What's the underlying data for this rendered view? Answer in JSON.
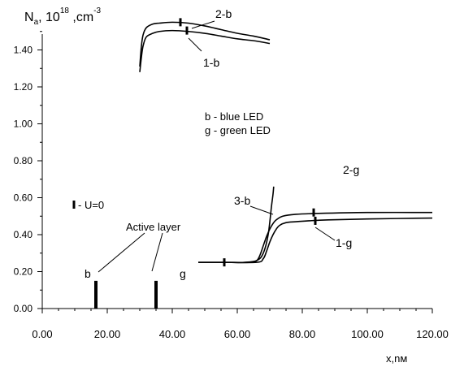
{
  "chart_data": {
    "type": "line",
    "title": "",
    "ylabel": {
      "main": "N",
      "sub": "a",
      "mid": ", 10",
      "sup1": "18",
      "unit": " ,cm",
      "sup2": "-3"
    },
    "xlabel": "x,nм",
    "xlim": [
      0,
      120
    ],
    "ylim": [
      0,
      1.6
    ],
    "x_ticks": [
      "0.00",
      "20.00",
      "40.00",
      "60.00",
      "80.00",
      "100.00",
      "120.00"
    ],
    "x_tick_values": [
      0,
      20,
      40,
      60,
      80,
      100,
      120
    ],
    "y_ticks": [
      "0.00",
      "0.20",
      "0.40",
      "0.60",
      "0.80",
      "1.00",
      "1.20",
      "1.40"
    ],
    "y_tick_values": [
      0,
      0.2,
      0.4,
      0.6,
      0.8,
      1.0,
      1.2,
      1.4
    ],
    "series": [
      {
        "name": "1-b",
        "x": [
          30,
          30.5,
          31,
          32,
          34,
          36,
          40,
          45,
          50,
          55,
          60,
          65,
          70
        ],
        "y": [
          1.28,
          1.36,
          1.42,
          1.47,
          1.49,
          1.5,
          1.505,
          1.5,
          1.49,
          1.475,
          1.46,
          1.45,
          1.435
        ]
      },
      {
        "name": "2-b",
        "x": [
          30,
          30.5,
          31,
          32,
          34,
          36,
          40,
          45,
          50,
          55,
          60,
          65,
          70
        ],
        "y": [
          1.31,
          1.42,
          1.48,
          1.52,
          1.54,
          1.545,
          1.55,
          1.545,
          1.53,
          1.51,
          1.49,
          1.475,
          1.455
        ]
      },
      {
        "name": "3-b",
        "x": [
          48,
          56,
          62,
          66,
          68,
          69.5,
          70.5,
          71,
          71.2
        ],
        "y": [
          0.25,
          0.25,
          0.25,
          0.26,
          0.3,
          0.4,
          0.55,
          0.62,
          0.66
        ]
      },
      {
        "name": "2-g",
        "x": [
          48,
          56,
          64,
          66,
          67,
          68,
          69,
          70,
          71,
          72,
          74,
          78,
          85,
          100,
          120
        ],
        "y": [
          0.25,
          0.25,
          0.25,
          0.26,
          0.29,
          0.34,
          0.39,
          0.43,
          0.46,
          0.48,
          0.5,
          0.51,
          0.515,
          0.52,
          0.52
        ]
      },
      {
        "name": "1-g",
        "x": [
          48,
          56,
          66,
          68,
          69,
          70,
          71,
          72,
          73,
          75,
          78,
          82,
          88,
          100,
          120
        ],
        "y": [
          0.25,
          0.25,
          0.25,
          0.27,
          0.31,
          0.36,
          0.4,
          0.43,
          0.45,
          0.465,
          0.47,
          0.475,
          0.48,
          0.485,
          0.49
        ]
      }
    ],
    "u0_markers": [
      {
        "x": 42.5,
        "y": 1.55
      },
      {
        "x": 44.5,
        "y": 1.505
      },
      {
        "x": 83.5,
        "y": 0.52
      },
      {
        "x": 84,
        "y": 0.475
      },
      {
        "x": 56,
        "y": 0.25
      }
    ],
    "active_layers": [
      {
        "x": 16.5,
        "y": 0.15
      },
      {
        "x": 35,
        "y": 0.15
      }
    ],
    "labels": {
      "l2b": "2-b",
      "l1b": "1-b",
      "l3b": "3-b",
      "l2g": "2-g",
      "l1g": "1-g",
      "legend_b": "b - blue LED",
      "legend_g": "g - green LED",
      "u0_legend": "- U=0",
      "active_layer": "Active layer",
      "b": "b",
      "g": "g"
    }
  }
}
